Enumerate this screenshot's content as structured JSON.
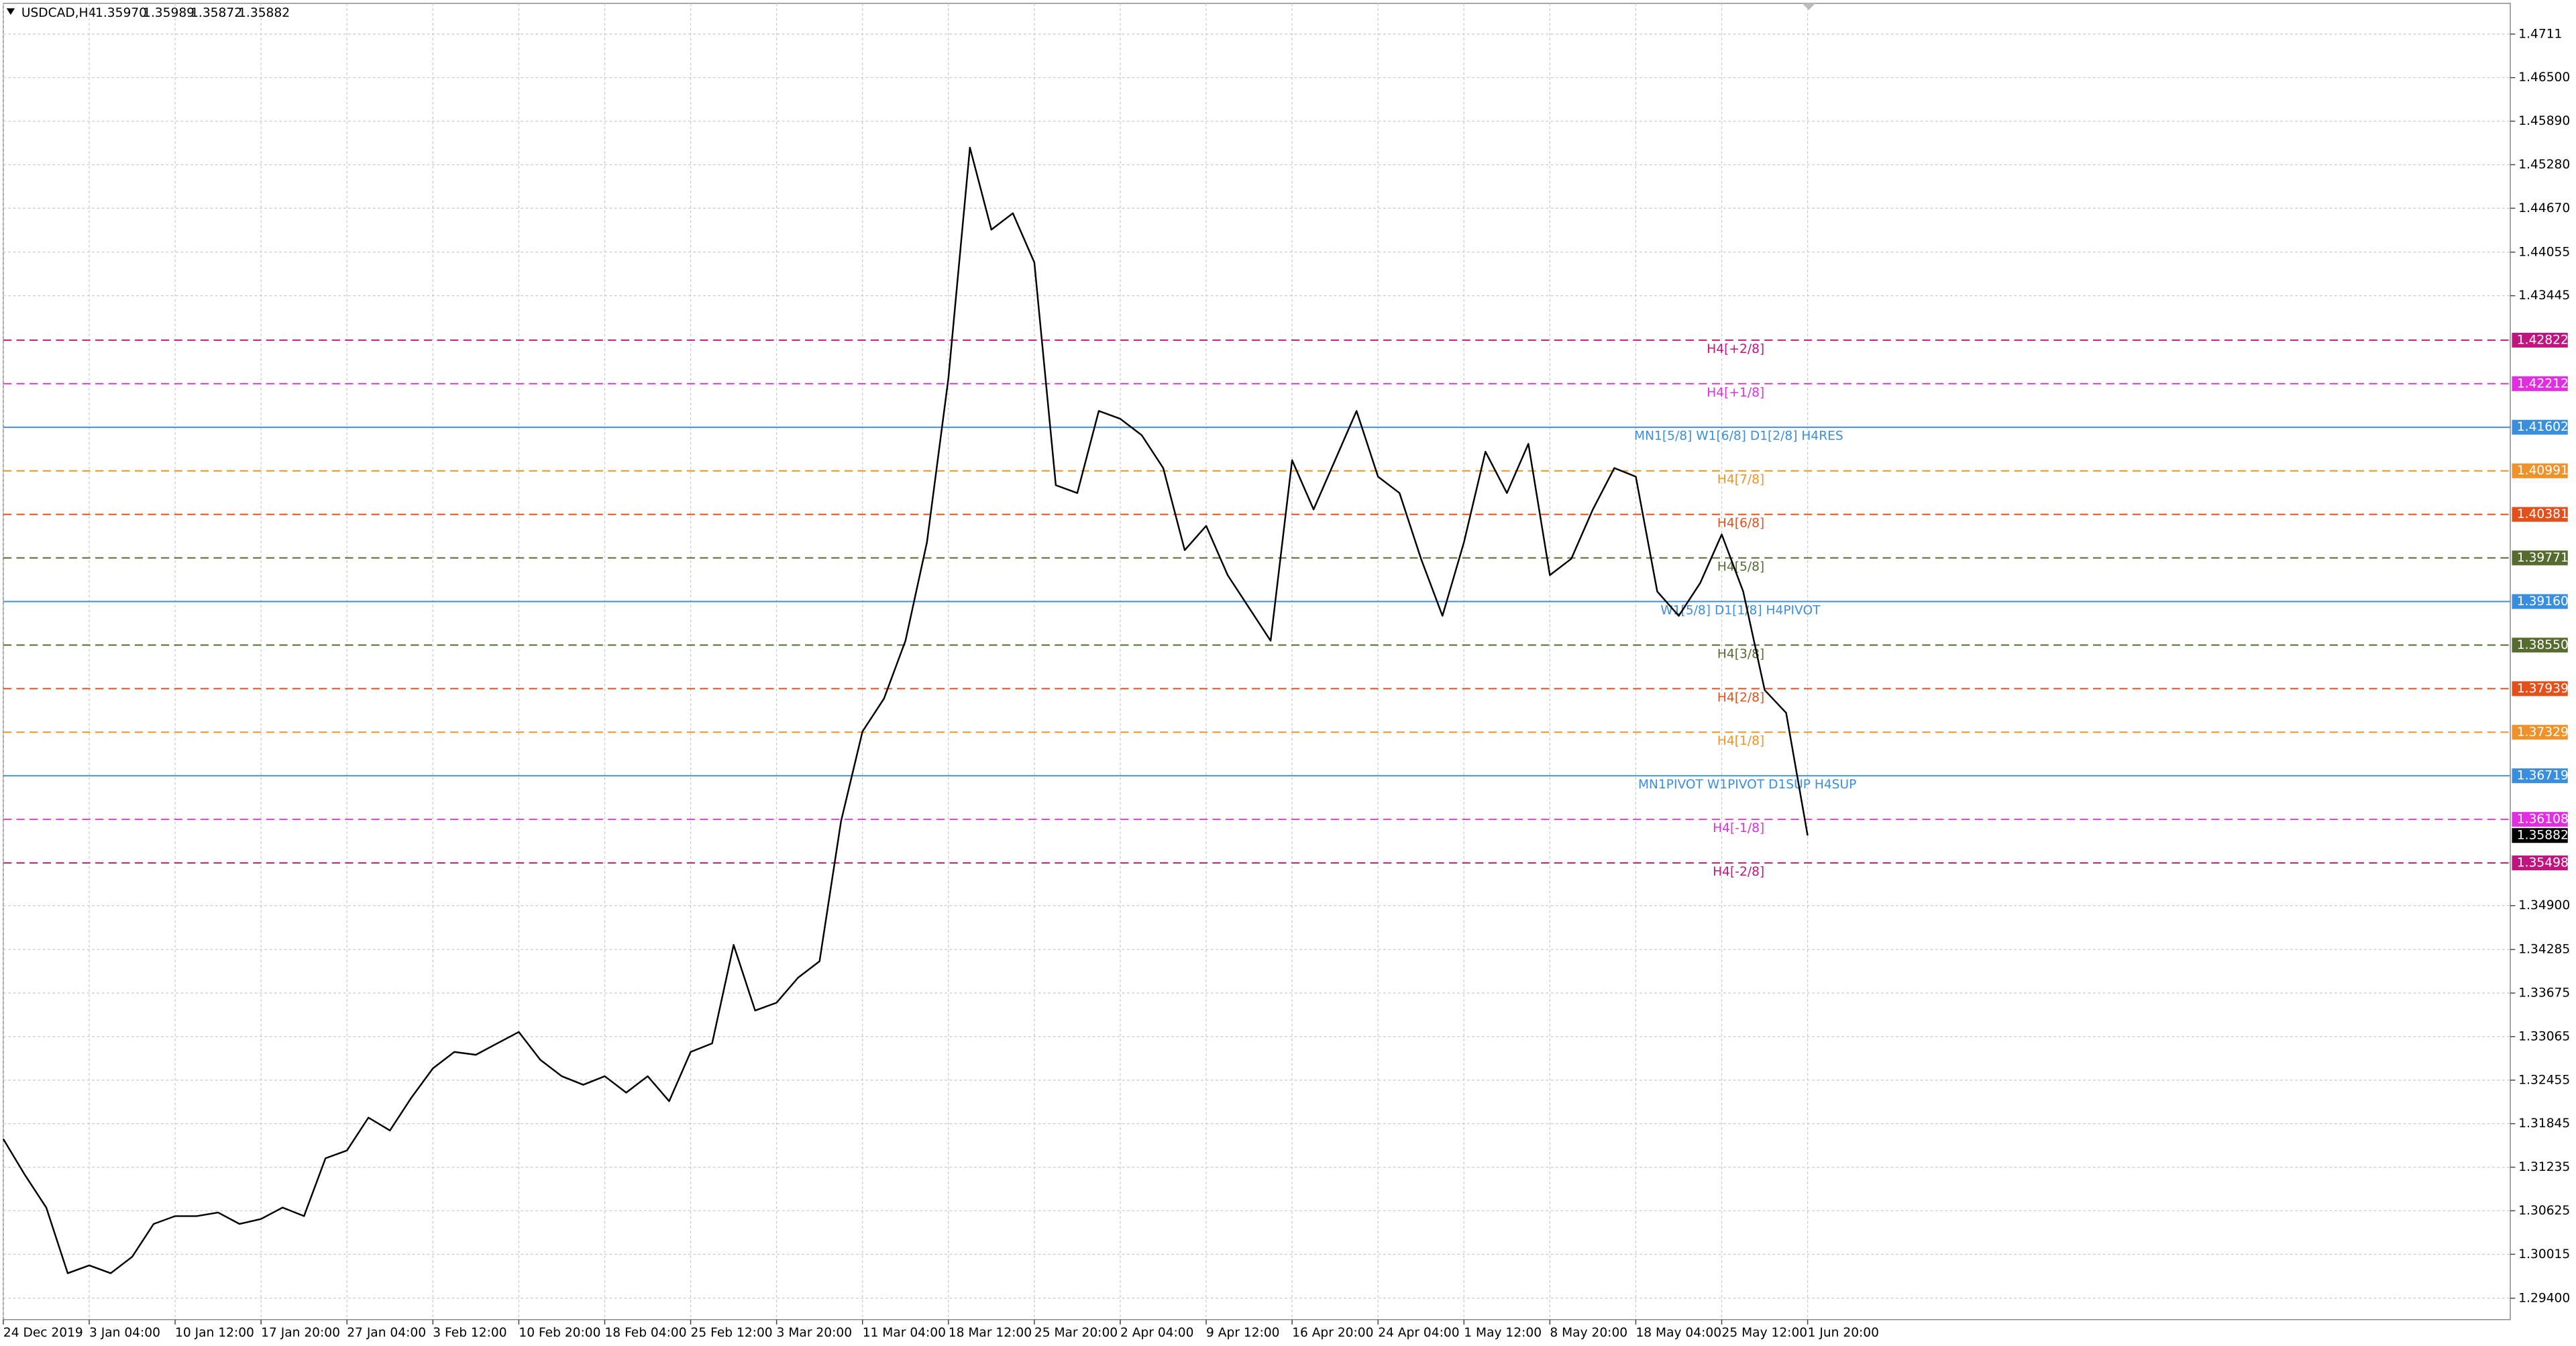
{
  "chart_data": {
    "type": "line",
    "header": {
      "symbol": "USDCAD,H4",
      "ohlc": [
        {
          "value": 1.3597,
          "label": "1.35970"
        },
        1.35989,
        1.35872,
        1.35882
      ]
    },
    "categories": [
      "24 Dec 2019",
      null,
      null,
      null,
      "3 Jan 04:00",
      null,
      null,
      null,
      "10 Jan 12:00",
      null,
      null,
      null,
      "17 Jan 20:00",
      null,
      null,
      null,
      "27 Jan 04:00",
      null,
      null,
      null,
      "3 Feb 12:00",
      null,
      null,
      null,
      "10 Feb 20:00",
      null,
      null,
      null,
      "18 Feb 04:00",
      null,
      null,
      null,
      "25 Feb 12:00",
      null,
      null,
      null,
      "3 Mar 20:00",
      null,
      null,
      null,
      "11 Mar 04:00",
      null,
      null,
      null,
      "18 Mar 12:00",
      null,
      null,
      null,
      "25 Mar 20:00",
      null,
      null,
      null,
      "2 Apr 04:00",
      null,
      null,
      null,
      "9 Apr 12:00",
      null,
      null,
      null,
      "16 Apr 20:00",
      null,
      null,
      null,
      "24 Apr 04:00",
      null,
      null,
      null,
      "1 May 12:00",
      null,
      null,
      null,
      "8 May 20:00",
      null,
      null,
      null,
      "18 May 04:00",
      null,
      null,
      null,
      "25 May 12:00",
      null,
      null,
      null,
      "1 Jun 20:00"
    ],
    "series": [
      {
        "name": "USDCAD,H4",
        "color": "#000000",
        "values": [
          1.3163,
          1.3113,
          1.3067,
          1.2975,
          1.2986,
          1.2975,
          1.2998,
          1.3044,
          1.3055,
          1.3055,
          1.306,
          1.3044,
          1.3051,
          1.3067,
          1.3055,
          1.3136,
          1.3147,
          1.3193,
          1.3175,
          1.3221,
          1.3262,
          1.3285,
          1.3281,
          1.3297,
          1.3313,
          1.3274,
          1.3251,
          1.3239,
          1.3251,
          1.3228,
          1.3251,
          1.3216,
          1.3285,
          1.3297,
          1.3435,
          1.3343,
          1.3354,
          1.3389,
          1.3412,
          1.3608,
          1.3734,
          1.378,
          1.3861,
          1.3999,
          1.4229,
          1.4552,
          1.4437,
          1.446,
          1.4391,
          1.4079,
          1.4068,
          1.4183,
          1.4172,
          1.4149,
          1.4103,
          1.3988,
          1.4022,
          1.3953,
          1.3907,
          1.3861,
          1.4114,
          1.4045,
          1.4114,
          1.4183,
          1.4091,
          1.4068,
          1.3976,
          1.3896,
          1.3999,
          1.4126,
          1.4068,
          1.4137,
          1.3953,
          1.3976,
          1.4045,
          1.4103,
          1.4091,
          1.393,
          1.3896,
          1.3942,
          1.401,
          1.393,
          1.3792,
          1.376,
          1.35882
        ]
      }
    ],
    "ylim": [
      1.291,
      1.4754
    ],
    "yticks": [
      1.4711,
      {
        "value": 1.465,
        "label": "1.46500"
      },
      {
        "value": 1.4589,
        "label": "1.45890"
      },
      {
        "value": 1.4528,
        "label": "1.45280"
      },
      {
        "value": 1.4467,
        "label": "1.44670"
      },
      1.44055,
      1.43445,
      {
        "value": 1.349,
        "label": "1.34900"
      },
      1.34285,
      1.33675,
      1.33065,
      1.32455,
      1.31845,
      1.31235,
      1.30625,
      1.30015,
      {
        "value": 1.294,
        "label": "1.29400"
      }
    ],
    "grid": true,
    "levels": [
      {
        "text": "H4[+2/8]",
        "value": 1.42822,
        "color": "#c0157f",
        "dashed": true
      },
      {
        "text": "H4[+1/8]",
        "value": 1.42212,
        "color": "#e02ee0",
        "dashed": true
      },
      {
        "text": "MN1[5/8] W1[6/8] D1[2/8] H4RES",
        "value": 1.41602,
        "color": "#3a8ede",
        "dashed": false
      },
      {
        "text": "H4[7/8]",
        "value": 1.40991,
        "color": "#f0922a",
        "dashed": true
      },
      {
        "text": "H4[6/8]",
        "value": 1.40381,
        "color": "#e2501c",
        "dashed": true
      },
      {
        "text": "H4[5/8]",
        "value": 1.39771,
        "color": "#556b2f",
        "dashed": true
      },
      {
        "text": "W1[5/8] D1[1/8] H4PIVOT",
        "value": 1.3916,
        "label": "1.39160",
        "color": "#3a8ede",
        "dashed": false
      },
      {
        "text": "H4[3/8]",
        "value": 1.3855,
        "label": "1.38550",
        "color": "#556b2f",
        "dashed": true
      },
      {
        "text": "H4[2/8]",
        "value": 1.37939,
        "color": "#e2501c",
        "dashed": true
      },
      {
        "text": "H4[1/8]",
        "value": 1.37329,
        "color": "#f0922a",
        "dashed": true
      },
      {
        "text": "MN1PIVOT W1PIVOT D1SUP H4SUP",
        "value": 1.36719,
        "color": "#3a8ede",
        "dashed": false
      },
      {
        "text": "H4[-1/8]",
        "value": 1.36108,
        "color": "#e02ee0",
        "dashed": true
      },
      {
        "text": "H4[-2/8]",
        "value": 1.35498,
        "color": "#c0157f",
        "dashed": true
      }
    ]
  }
}
